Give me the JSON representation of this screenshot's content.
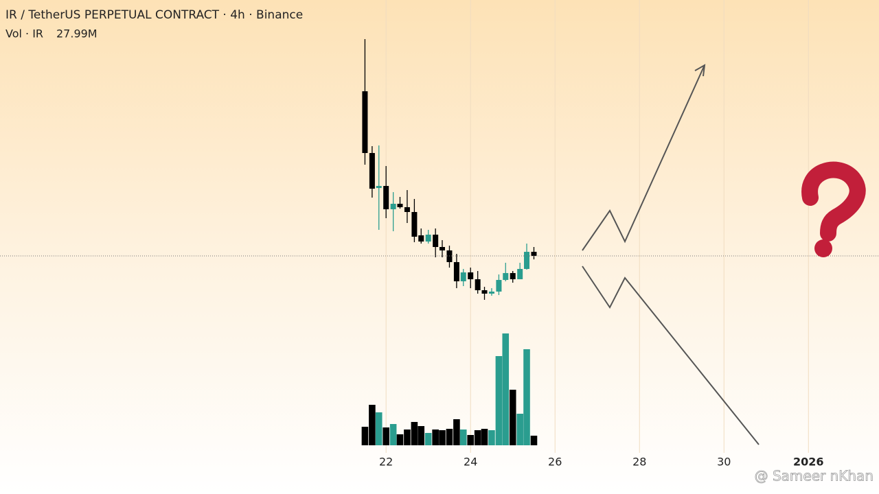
{
  "chart_data": {
    "type": "candlestick",
    "title": "IR / TetherUS PERPETUAL CONTRACT · 4h · Binance",
    "up_color": "#2a9d8f",
    "down_color": "#000000",
    "x": [
      21.5,
      21.67,
      21.83,
      22,
      22.17,
      22.33,
      22.5,
      22.67,
      22.83,
      23,
      23.17,
      23.33,
      23.5,
      23.67,
      23.83,
      24,
      24.17,
      24.33,
      24.5,
      24.67,
      24.83,
      25,
      25.17,
      25.33,
      25.5
    ],
    "open": [
      87.83,
      72.83,
      64.33,
      64.83,
      59.17,
      60.5,
      59.67,
      58.5,
      52.83,
      51.33,
      53,
      50,
      49.17,
      46.33,
      41.67,
      43.83,
      42.17,
      39.5,
      38.67,
      39.17,
      42,
      43.67,
      42.17,
      44.67,
      48.83
    ],
    "high": [
      100.5,
      74.5,
      74.67,
      69.67,
      63.33,
      62.17,
      63.83,
      61.67,
      54.5,
      54.17,
      54.5,
      51.67,
      50.33,
      48.33,
      44.67,
      45,
      44.17,
      40.33,
      40,
      43.33,
      46.17,
      44.17,
      46.17,
      50.83,
      50
    ],
    "low": [
      70,
      62,
      54.17,
      57,
      53.83,
      59.33,
      55.83,
      51.17,
      50.83,
      50.83,
      47.5,
      47.5,
      45,
      40,
      40.5,
      40,
      38.67,
      37.17,
      38.17,
      38.33,
      41.67,
      41.33,
      43,
      44.5,
      47
    ],
    "close": [
      72.83,
      64.17,
      64.83,
      59.17,
      60.5,
      59.67,
      58.5,
      52.5,
      51.33,
      53,
      50,
      49.17,
      46.33,
      41.67,
      43.83,
      42.17,
      39.5,
      38.67,
      39.17,
      42,
      43.67,
      42.17,
      44.67,
      48.83,
      47.83
    ],
    "ylim": [
      0,
      110
    ],
    "volume": {
      "name": "Vol · IR",
      "last_label": "27.99M",
      "values": [
        54,
        118,
        96,
        52,
        62,
        32,
        46,
        68,
        56,
        36,
        46,
        44,
        48,
        76,
        46,
        30,
        44,
        48,
        44,
        260,
        326,
        162,
        92,
        280,
        27.99
      ],
      "ylim": [
        0,
        400
      ]
    },
    "xlim": [
      12.86,
      33.67
    ],
    "xticks": [
      22,
      24,
      26,
      28,
      30,
      {
        "value": 32,
        "label": "2026"
      }
    ],
    "watermark": "@ Sameer nKhan"
  }
}
